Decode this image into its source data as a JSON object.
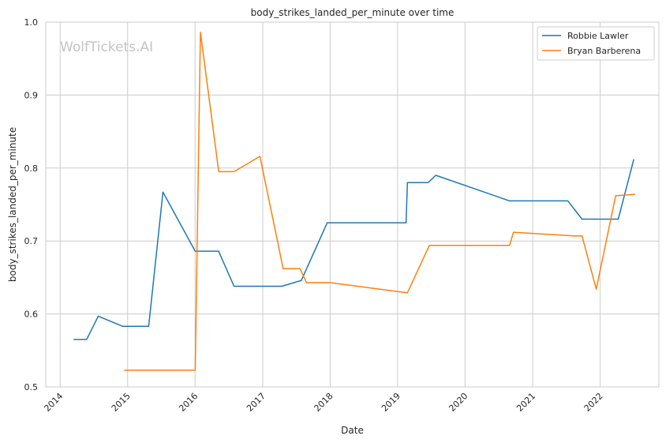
{
  "chart_data": {
    "type": "line",
    "title": "body_strikes_landed_per_minute over time",
    "xlabel": "Date",
    "ylabel": "body_strikes_landed_per_minute",
    "watermark": "WolfTickets.AI",
    "x_type": "date",
    "xlim": [
      "2013-10-15",
      "2022-11-15"
    ],
    "ylim": [
      0.5,
      1.0
    ],
    "x_ticks": [
      "2014",
      "2015",
      "2016",
      "2017",
      "2018",
      "2019",
      "2020",
      "2021",
      "2022"
    ],
    "y_ticks": [
      "0.5",
      "0.6",
      "0.7",
      "0.8",
      "0.9",
      "1.0"
    ],
    "grid": true,
    "legend_position": "top-right",
    "series": [
      {
        "name": "Robbie Lawler",
        "color": "#1f77b4",
        "points": [
          [
            "2014-03-15",
            0.565
          ],
          [
            "2014-05-24",
            0.565
          ],
          [
            "2014-07-26",
            0.597
          ],
          [
            "2014-12-06",
            0.583
          ],
          [
            "2015-04-25",
            0.583
          ],
          [
            "2015-07-11",
            0.767
          ],
          [
            "2016-01-02",
            0.686
          ],
          [
            "2016-05-07",
            0.686
          ],
          [
            "2016-07-30",
            0.638
          ],
          [
            "2017-04-15",
            0.638
          ],
          [
            "2017-07-29",
            0.646
          ],
          [
            "2017-12-16",
            0.725
          ],
          [
            "2019-02-16",
            0.725
          ],
          [
            "2019-02-23",
            0.78
          ],
          [
            "2019-06-15",
            0.78
          ],
          [
            "2019-07-27",
            0.79
          ],
          [
            "2020-08-29",
            0.755
          ],
          [
            "2021-07-10",
            0.755
          ],
          [
            "2021-09-25",
            0.73
          ],
          [
            "2022-04-09",
            0.73
          ],
          [
            "2022-07-02",
            0.812
          ]
        ]
      },
      {
        "name": "Bryan Barberena",
        "color": "#ff7f0e",
        "points": [
          [
            "2014-12-13",
            0.523
          ],
          [
            "2016-01-02",
            0.523
          ],
          [
            "2016-01-30",
            0.986
          ],
          [
            "2016-05-08",
            0.795
          ],
          [
            "2016-07-30",
            0.795
          ],
          [
            "2016-12-17",
            0.816
          ],
          [
            "2017-04-22",
            0.662
          ],
          [
            "2017-07-22",
            0.662
          ],
          [
            "2017-08-26",
            0.643
          ],
          [
            "2017-12-30",
            0.643
          ],
          [
            "2019-02-23",
            0.629
          ],
          [
            "2019-06-22",
            0.694
          ],
          [
            "2020-08-29",
            0.694
          ],
          [
            "2020-09-19",
            0.712
          ],
          [
            "2021-08-14",
            0.707
          ],
          [
            "2021-09-25",
            0.707
          ],
          [
            "2021-12-11",
            0.634
          ],
          [
            "2022-03-26",
            0.762
          ],
          [
            "2022-07-09",
            0.764
          ]
        ]
      }
    ]
  }
}
